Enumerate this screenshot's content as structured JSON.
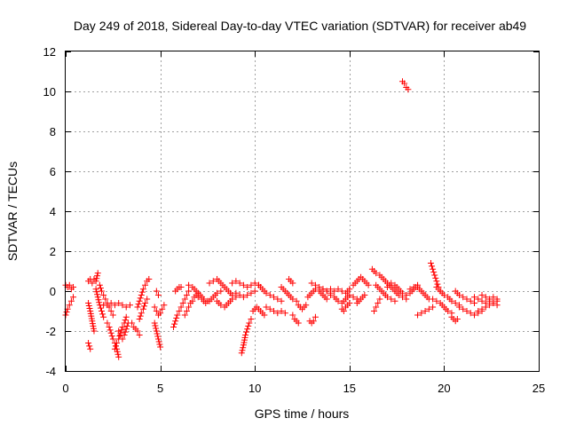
{
  "chart_data": {
    "type": "scatter",
    "title": "Day 249 of 2018, Sidereal Day-to-day VTEC variation (SDTVAR) for receiver ab49",
    "xlabel": "GPS time / hours",
    "ylabel": "SDTVAR / TECUs",
    "xlim": [
      0,
      25
    ],
    "ylim": [
      -4,
      12
    ],
    "x_ticks": [
      0,
      5,
      10,
      15,
      20,
      25
    ],
    "x_tick_labels": [
      "0",
      "5",
      "10",
      "15",
      "20",
      "25"
    ],
    "y_ticks": [
      -4,
      -2,
      0,
      2,
      4,
      6,
      8,
      10,
      12
    ],
    "y_tick_labels": [
      "-4",
      "-2",
      "0",
      "2",
      "4",
      "6",
      "8",
      "10",
      "12"
    ],
    "grid": true,
    "marker": "+",
    "color": "#ff0000",
    "series": [
      {
        "name": "SDTVAR",
        "segments": [
          {
            "x": [
              0.0,
              0.1,
              0.2,
              0.3,
              0.4
            ],
            "y": [
              0.3,
              0.2,
              0.3,
              0.1,
              0.2
            ]
          },
          {
            "x": [
              0.0,
              0.1,
              0.2,
              0.3,
              0.4
            ],
            "y": [
              -1.2,
              -0.9,
              -0.7,
              -0.5,
              -0.3
            ]
          },
          {
            "x": [
              1.2,
              1.3,
              1.4,
              1.5,
              1.6,
              1.7
            ],
            "y": [
              0.5,
              0.6,
              0.4,
              0.6,
              0.5,
              0.9
            ]
          },
          {
            "x": [
              1.2,
              1.3,
              1.4,
              1.5
            ],
            "y": [
              -0.6,
              -1.0,
              -1.5,
              -2.0
            ]
          },
          {
            "x": [
              1.2,
              1.3
            ],
            "y": [
              -2.6,
              -2.9
            ]
          },
          {
            "x": [
              1.6,
              1.7,
              1.8,
              1.9,
              2.0
            ],
            "y": [
              0.1,
              -0.3,
              -0.7,
              -1.0,
              -1.3
            ]
          },
          {
            "x": [
              1.8,
              1.9,
              2.0,
              2.1,
              2.2,
              2.3,
              2.4,
              2.5
            ],
            "y": [
              0.3,
              0.0,
              -0.2,
              -0.4,
              -0.6,
              -0.8,
              -1.0,
              -1.2
            ]
          },
          {
            "x": [
              2.0,
              2.2,
              2.4,
              2.6,
              2.8,
              3.0,
              3.2,
              3.4
            ],
            "y": [
              -0.7,
              -0.7,
              -0.6,
              -0.7,
              -0.6,
              -0.7,
              -0.8,
              -0.7
            ]
          },
          {
            "x": [
              2.2,
              2.3,
              2.4,
              2.5,
              2.6,
              2.7,
              2.8
            ],
            "y": [
              -1.6,
              -1.8,
              -2.1,
              -2.4,
              -2.6,
              -2.9,
              -3.3
            ]
          },
          {
            "x": [
              2.6,
              2.7,
              2.8,
              2.9,
              3.0,
              3.1,
              3.2
            ],
            "y": [
              -2.9,
              -2.6,
              -2.4,
              -2.1,
              -1.8,
              -1.6,
              -1.3
            ]
          },
          {
            "x": [
              2.8,
              2.9,
              3.0,
              3.1,
              3.2,
              3.3
            ],
            "y": [
              -2.0,
              -2.2,
              -2.4,
              -2.2,
              -1.9,
              -1.6
            ]
          },
          {
            "x": [
              3.5,
              3.6,
              3.7,
              3.8,
              3.9
            ],
            "y": [
              -1.6,
              -1.8,
              -1.9,
              -2.0,
              -2.2
            ]
          },
          {
            "x": [
              3.8,
              3.9,
              4.0,
              4.1,
              4.2,
              4.3,
              4.4
            ],
            "y": [
              -0.8,
              -0.5,
              -0.2,
              0.1,
              0.3,
              0.5,
              0.6
            ]
          },
          {
            "x": [
              3.9,
              4.0,
              4.1,
              4.2,
              4.3
            ],
            "y": [
              -1.4,
              -1.1,
              -0.9,
              -0.6,
              -0.4
            ]
          },
          {
            "x": [
              4.7,
              4.8,
              4.9,
              5.0,
              5.1,
              5.2
            ],
            "y": [
              -0.8,
              -1.0,
              -1.2,
              -1.1,
              -0.9,
              -0.7
            ]
          },
          {
            "x": [
              4.7,
              4.8,
              4.9,
              5.0
            ],
            "y": [
              -1.6,
              -2.0,
              -2.4,
              -2.8
            ]
          },
          {
            "x": [
              4.8,
              4.9
            ],
            "y": [
              0.0,
              -0.2
            ]
          },
          {
            "x": [
              5.7,
              5.8,
              5.9,
              6.0,
              6.1,
              6.2,
              6.3,
              6.4,
              6.5
            ],
            "y": [
              -1.8,
              -1.5,
              -1.2,
              -1.0,
              -0.8,
              -0.6,
              -0.4,
              -0.2,
              0.0
            ]
          },
          {
            "x": [
              5.8,
              5.9,
              6.0,
              6.1
            ],
            "y": [
              0.0,
              0.1,
              0.2,
              0.2
            ]
          },
          {
            "x": [
              6.3,
              6.4,
              6.5,
              6.6,
              6.7,
              6.8,
              6.9,
              7.0
            ],
            "y": [
              -1.2,
              -1.0,
              -0.8,
              -0.6,
              -0.5,
              -0.3,
              -0.2,
              -0.1
            ]
          },
          {
            "x": [
              6.5,
              6.7,
              6.9,
              7.1,
              7.3,
              7.5
            ],
            "y": [
              0.3,
              0.2,
              0.0,
              -0.2,
              -0.4,
              -0.5
            ]
          },
          {
            "x": [
              7.0,
              7.2,
              7.4,
              7.6,
              7.8,
              8.0,
              8.2
            ],
            "y": [
              -0.3,
              -0.4,
              -0.6,
              -0.5,
              -0.3,
              -0.1,
              0.0
            ]
          },
          {
            "x": [
              7.6,
              7.8,
              8.0,
              8.2,
              8.4,
              8.6,
              8.8
            ],
            "y": [
              0.4,
              0.5,
              0.6,
              0.4,
              0.2,
              0.0,
              -0.2
            ]
          },
          {
            "x": [
              8.0,
              8.2,
              8.4,
              8.6,
              8.8,
              9.0
            ],
            "y": [
              -0.5,
              -0.7,
              -0.8,
              -0.6,
              -0.4,
              -0.3
            ]
          },
          {
            "x": [
              8.8,
              9.0,
              9.2,
              9.4,
              9.6,
              9.8,
              10.0,
              10.2
            ],
            "y": [
              0.4,
              0.5,
              0.4,
              0.3,
              0.2,
              0.3,
              0.4,
              0.3
            ]
          },
          {
            "x": [
              9.0,
              9.2,
              9.4,
              9.6,
              9.8,
              10.0
            ],
            "y": [
              -0.1,
              -0.2,
              -0.3,
              -0.2,
              -0.1,
              0.0
            ]
          },
          {
            "x": [
              9.3,
              9.4,
              9.5,
              9.6,
              9.7,
              9.8
            ],
            "y": [
              -3.1,
              -2.7,
              -2.2,
              -1.9,
              -1.6,
              -1.4
            ]
          },
          {
            "x": [
              9.9,
              10.0,
              10.1,
              10.2,
              10.3,
              10.4,
              10.5
            ],
            "y": [
              -1.0,
              -0.9,
              -0.8,
              -0.9,
              -1.0,
              -1.1,
              -1.2
            ]
          },
          {
            "x": [
              10.2,
              10.4,
              10.6,
              10.8,
              11.0,
              11.2,
              11.4
            ],
            "y": [
              0.3,
              0.1,
              -0.1,
              -0.2,
              -0.3,
              -0.4,
              -0.5
            ]
          },
          {
            "x": [
              10.6,
              10.8,
              11.0,
              11.2,
              11.4,
              11.6
            ],
            "y": [
              -0.8,
              -0.9,
              -1.0,
              -1.1,
              -1.0,
              -1.1
            ]
          },
          {
            "x": [
              11.4,
              11.6,
              11.8,
              12.0
            ],
            "y": [
              0.2,
              0.0,
              -0.2,
              -0.4
            ]
          },
          {
            "x": [
              11.8,
              11.9,
              12.0
            ],
            "y": [
              0.6,
              0.5,
              0.4
            ]
          },
          {
            "x": [
              12.0,
              12.1,
              12.2,
              12.3
            ],
            "y": [
              -1.2,
              -1.4,
              -1.5,
              -1.6
            ]
          },
          {
            "x": [
              12.2,
              12.3,
              12.4,
              12.5,
              12.6,
              12.7
            ],
            "y": [
              -0.5,
              -0.7,
              -0.8,
              -0.9,
              -0.8,
              -0.7
            ]
          },
          {
            "x": [
              12.9,
              13.0,
              13.1,
              13.2
            ],
            "y": [
              -1.5,
              -1.6,
              -1.5,
              -1.3
            ]
          },
          {
            "x": [
              12.8,
              13.0,
              13.2,
              13.4,
              13.6,
              13.8
            ],
            "y": [
              -0.3,
              -0.1,
              0.1,
              0.0,
              -0.2,
              -0.4
            ]
          },
          {
            "x": [
              13.0,
              13.2,
              13.4,
              13.6,
              13.8,
              14.0
            ],
            "y": [
              0.4,
              0.3,
              0.2,
              0.1,
              0.0,
              0.1
            ]
          },
          {
            "x": [
              13.6,
              13.8,
              14.0,
              14.2,
              14.4,
              14.6,
              14.8,
              15.0
            ],
            "y": [
              0.1,
              0.0,
              -0.1,
              0.0,
              0.1,
              0.0,
              -0.1,
              0.1
            ]
          },
          {
            "x": [
              14.0,
              14.2,
              14.4,
              14.6,
              14.8,
              15.0,
              15.2,
              15.4
            ],
            "y": [
              -0.2,
              -0.3,
              -0.5,
              -0.6,
              -0.4,
              -0.2,
              -0.3,
              -0.4
            ]
          },
          {
            "x": [
              14.6,
              14.7,
              14.8,
              14.9,
              15.0
            ],
            "y": [
              -0.9,
              -1.0,
              -0.8,
              -0.7,
              -0.6
            ]
          },
          {
            "x": [
              15.2,
              15.4,
              15.6,
              15.8,
              16.0
            ],
            "y": [
              0.3,
              0.5,
              0.7,
              0.5,
              0.3
            ]
          },
          {
            "x": [
              15.4,
              15.5,
              15.6,
              15.7,
              15.8
            ],
            "y": [
              -0.6,
              -0.5,
              -0.4,
              -0.3,
              -0.2
            ]
          },
          {
            "x": [
              16.2,
              16.4,
              16.6,
              16.8,
              17.0,
              17.2,
              17.4,
              17.6,
              17.8,
              18.0
            ],
            "y": [
              1.1,
              0.9,
              0.8,
              0.6,
              0.4,
              0.2,
              0.0,
              -0.2,
              -0.3,
              -0.4
            ]
          },
          {
            "x": [
              16.4,
              16.6,
              16.8,
              17.0,
              17.2,
              17.4
            ],
            "y": [
              0.3,
              0.1,
              -0.1,
              -0.3,
              -0.4,
              -0.5
            ]
          },
          {
            "x": [
              16.3,
              16.4,
              16.5,
              16.6
            ],
            "y": [
              -1.0,
              -0.8,
              -0.6,
              -0.4
            ]
          },
          {
            "x": [
              17.0,
              17.2,
              17.4,
              17.6,
              17.8,
              18.0,
              18.2,
              18.4,
              18.6
            ],
            "y": [
              0.2,
              0.4,
              0.3,
              0.1,
              -0.1,
              -0.2,
              -0.1,
              0.1,
              0.3
            ]
          },
          {
            "x": [
              17.8,
              17.9,
              18.0,
              18.1
            ],
            "y": [
              10.5,
              10.4,
              10.2,
              10.1
            ]
          },
          {
            "x": [
              18.2,
              18.4,
              18.6,
              18.8,
              19.0,
              19.2
            ],
            "y": [
              0.1,
              0.2,
              0.2,
              0.0,
              -0.2,
              -0.4
            ]
          },
          {
            "x": [
              18.6,
              18.8,
              19.0,
              19.2,
              19.4
            ],
            "y": [
              -1.2,
              -1.1,
              -1.0,
              -0.9,
              -0.8
            ]
          },
          {
            "x": [
              19.3,
              19.4,
              19.5,
              19.6,
              19.7,
              19.8
            ],
            "y": [
              1.4,
              1.1,
              0.8,
              0.5,
              0.2,
              0.0
            ]
          },
          {
            "x": [
              19.4,
              19.6,
              19.8,
              20.0,
              20.2,
              20.4
            ],
            "y": [
              -0.4,
              -0.5,
              -0.6,
              -0.8,
              -1.0,
              -1.1
            ]
          },
          {
            "x": [
              19.6,
              19.8,
              20.0,
              20.2,
              20.4,
              20.6,
              20.8
            ],
            "y": [
              0.2,
              0.0,
              -0.2,
              -0.3,
              -0.5,
              -0.6,
              -0.7
            ]
          },
          {
            "x": [
              20.4,
              20.5,
              20.6,
              20.7
            ],
            "y": [
              -1.3,
              -1.4,
              -1.5,
              -1.4
            ]
          },
          {
            "x": [
              20.6,
              20.8,
              21.0,
              21.2,
              21.4,
              21.6
            ],
            "y": [
              0.0,
              -0.2,
              -0.3,
              -0.4,
              -0.5,
              -0.6
            ]
          },
          {
            "x": [
              20.8,
              21.0,
              21.2,
              21.4,
              21.6,
              21.8,
              22.0
            ],
            "y": [
              -0.8,
              -0.9,
              -1.0,
              -1.1,
              -1.2,
              -1.1,
              -1.0
            ]
          },
          {
            "x": [
              21.6,
              21.8,
              22.0,
              22.2,
              22.4,
              22.6,
              22.8
            ],
            "y": [
              -0.3,
              -0.4,
              -0.5,
              -0.6,
              -0.5,
              -0.6,
              -0.7
            ]
          },
          {
            "x": [
              21.8,
              22.0,
              22.2,
              22.4,
              22.6,
              22.8
            ],
            "y": [
              -1.0,
              -0.9,
              -0.8,
              -0.7,
              -0.6,
              -0.5
            ]
          },
          {
            "x": [
              22.0,
              22.2,
              22.4,
              22.6,
              22.8
            ],
            "y": [
              -0.2,
              -0.3,
              -0.4,
              -0.3,
              -0.4
            ]
          }
        ]
      }
    ]
  }
}
